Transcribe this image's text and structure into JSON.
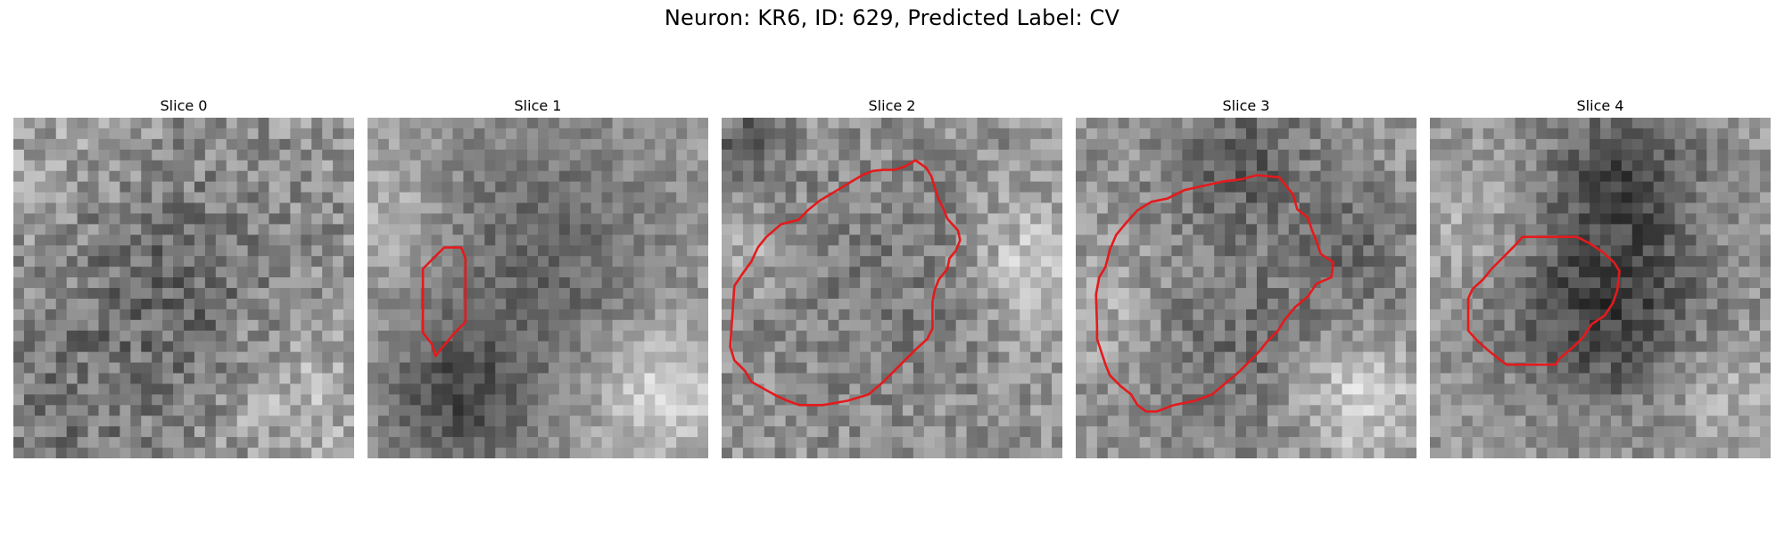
{
  "title": "Neuron: KR6, ID: 629, Predicted Label: CV",
  "contour_color": "#e41a1c",
  "panels": [
    {
      "title": "Slice 0",
      "has_contour": false
    },
    {
      "title": "Slice 1",
      "has_contour": true
    },
    {
      "title": "Slice 2",
      "has_contour": true
    },
    {
      "title": "Slice 3",
      "has_contour": true
    },
    {
      "title": "Slice 4",
      "has_contour": true
    }
  ]
}
